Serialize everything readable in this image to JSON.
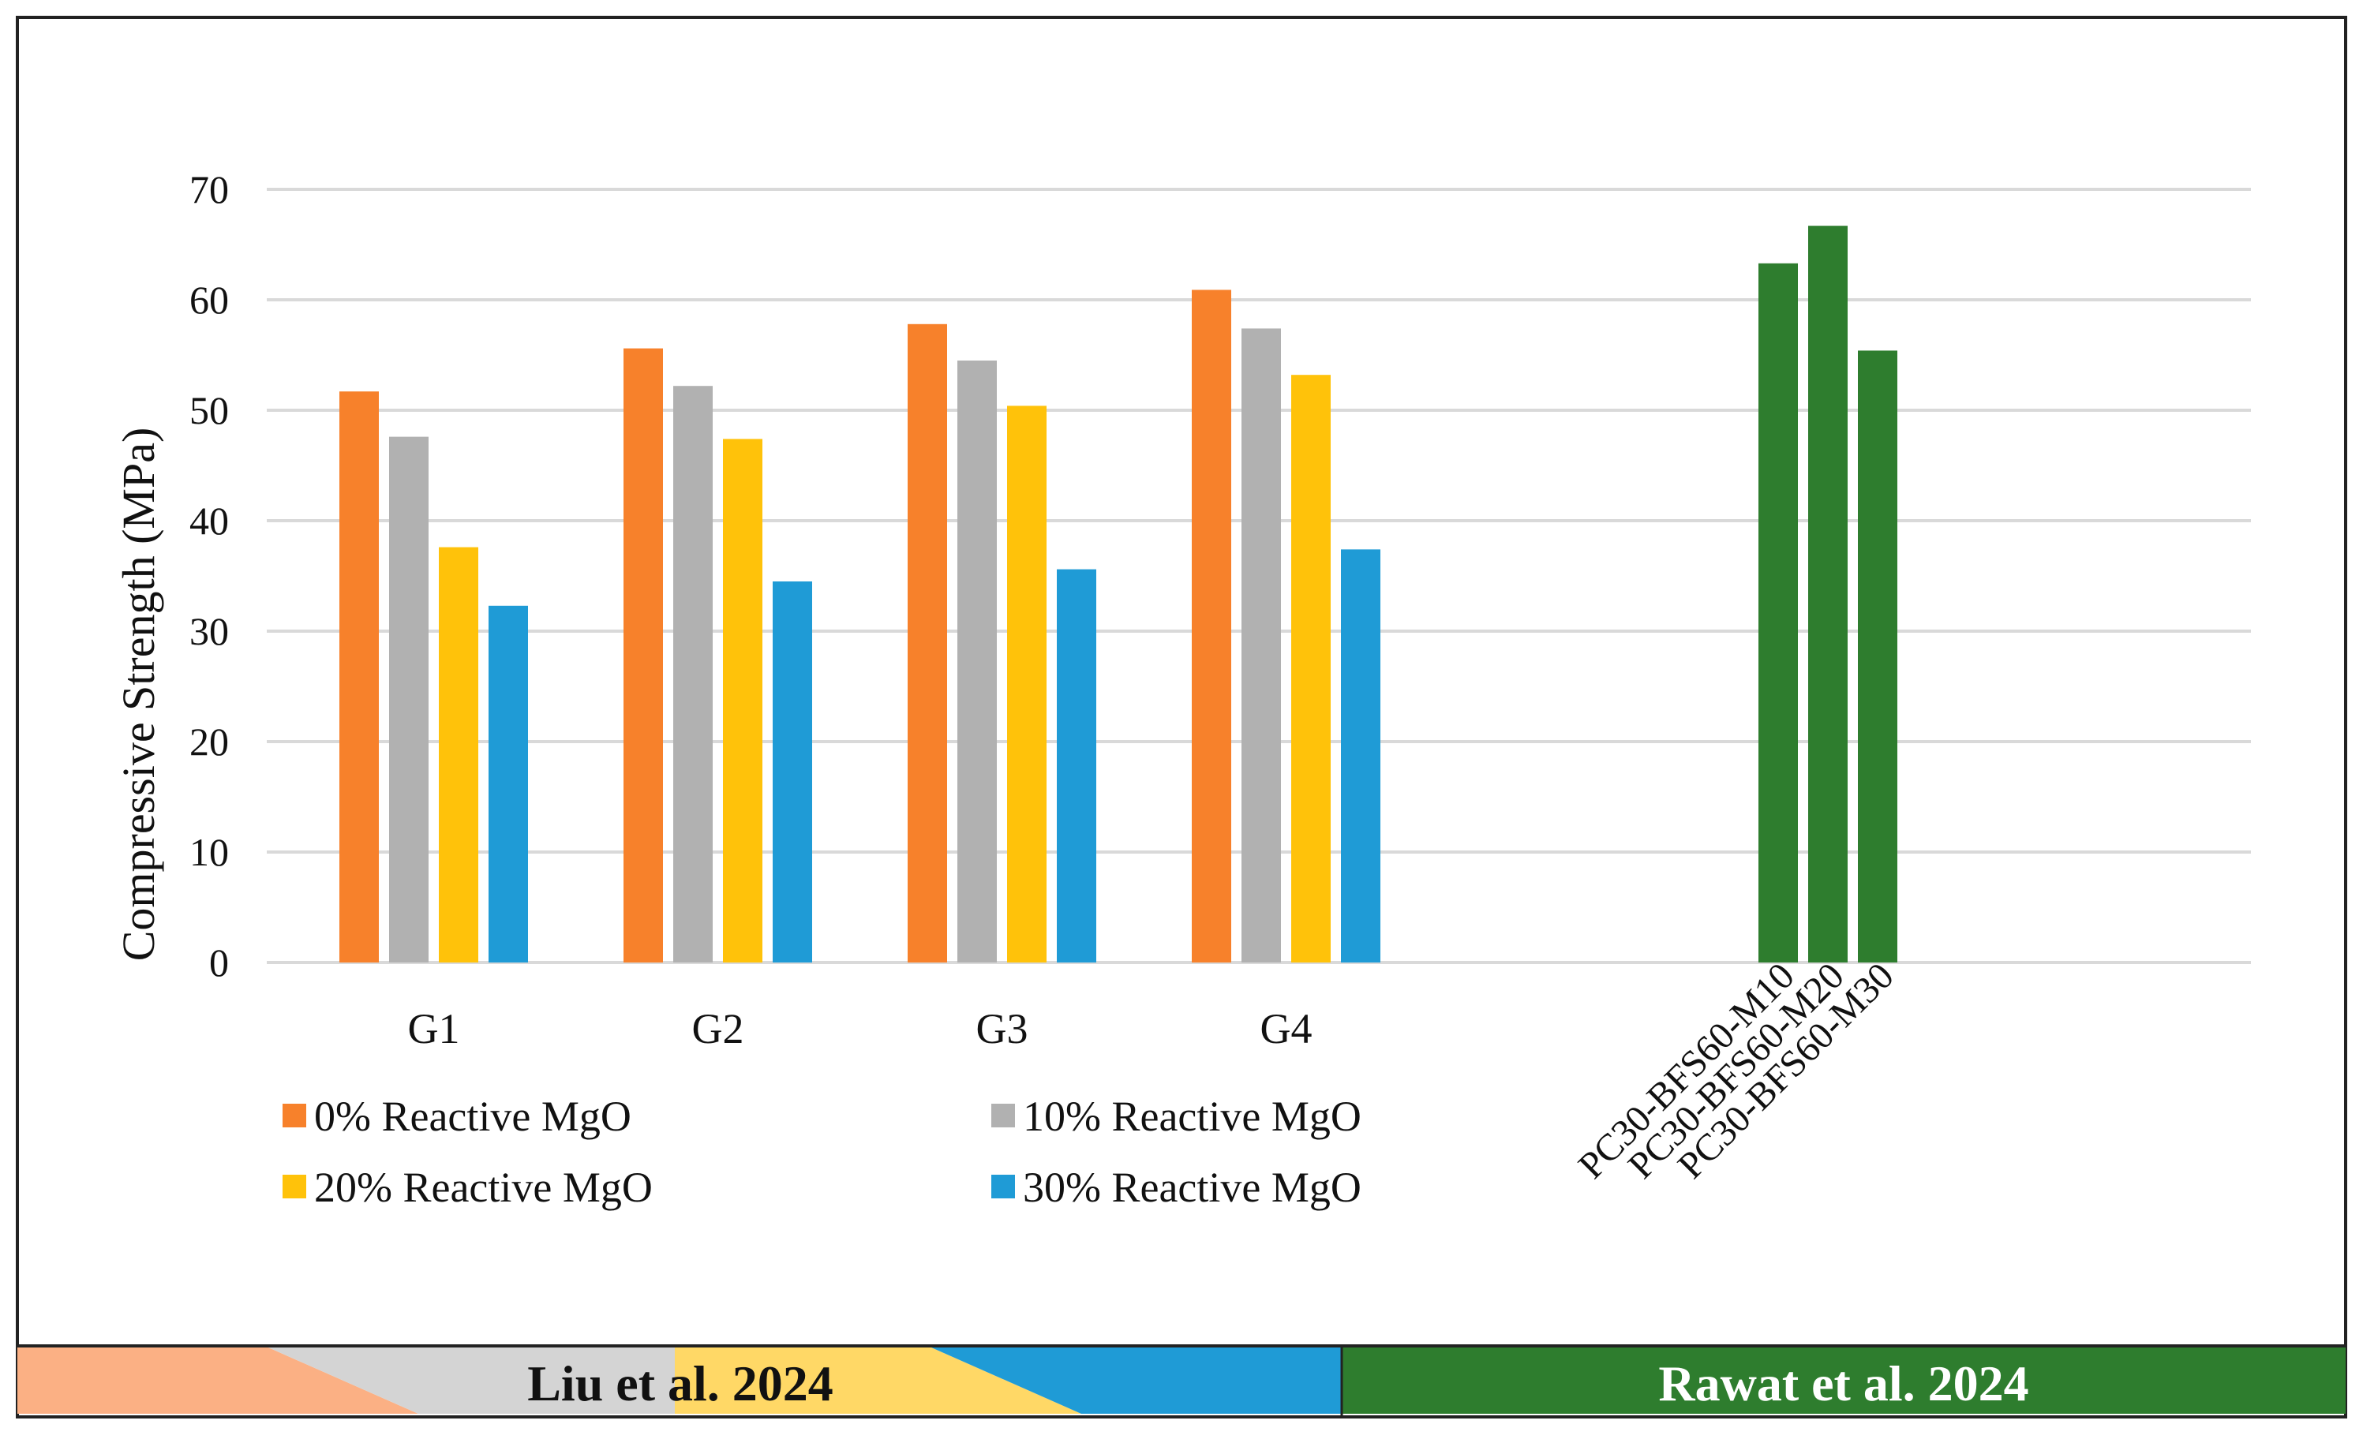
{
  "chart_data": {
    "type": "bar",
    "ylabel": "Compressive Strength (MPa)",
    "ylim": [
      0,
      70
    ],
    "yticks": [
      "0",
      "10",
      "20",
      "30",
      "40",
      "50",
      "60",
      "70"
    ],
    "grid": true,
    "groups": [
      {
        "study": "Liu et al. 2024",
        "categories": [
          "G1",
          "G2",
          "G3",
          "G4"
        ],
        "series": [
          {
            "name": "0% Reactive MgO",
            "color": "#f7812b",
            "values": [
              51.7,
              55.6,
              57.8,
              60.9
            ]
          },
          {
            "name": "10% Reactive MgO",
            "color": "#b1b1b1",
            "values": [
              47.6,
              52.2,
              54.5,
              57.4
            ]
          },
          {
            "name": "20% Reactive MgO",
            "color": "#ffc20a",
            "values": [
              37.6,
              47.4,
              50.4,
              53.2
            ]
          },
          {
            "name": "30% Reactive MgO",
            "color": "#1f9bd6",
            "values": [
              32.3,
              34.5,
              35.6,
              37.4
            ]
          }
        ]
      },
      {
        "study": "Rawat et al. 2024",
        "color": "#2e7d2e",
        "categories": [
          "PC30-BFS60-M10",
          "PC30-BFS60-M20",
          "PC30-BFS60-M30"
        ],
        "values": [
          63.3,
          66.7,
          55.4
        ]
      }
    ],
    "legend": [
      "0% Reactive MgO",
      "10% Reactive MgO",
      "20% Reactive MgO",
      "30% Reactive MgO"
    ],
    "legend_position": "bottom-left"
  },
  "footer": {
    "left_label": "Liu et al. 2024",
    "right_label": "Rawat et al. 2024"
  }
}
